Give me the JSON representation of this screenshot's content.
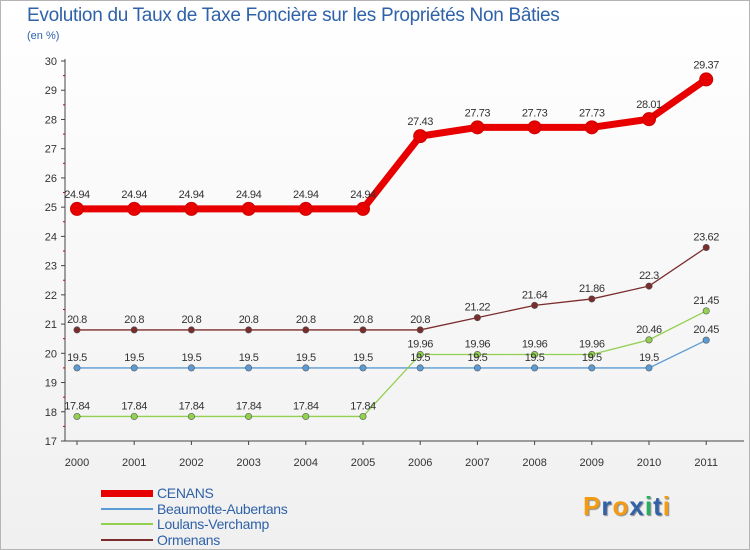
{
  "chart_data": {
    "type": "line",
    "title": "Evolution du Taux de Taxe Foncière sur les Propriétés Non Bâties",
    "subtitle": "(en %)",
    "x": [
      "2000",
      "2001",
      "2002",
      "2003",
      "2004",
      "2005",
      "2006",
      "2007",
      "2008",
      "2009",
      "2010",
      "2011"
    ],
    "ylim": [
      17,
      30
    ],
    "yticks": [
      "17",
      "18",
      "19",
      "20",
      "21",
      "22",
      "23",
      "24",
      "25",
      "26",
      "27",
      "28",
      "29",
      "30"
    ],
    "grid": false,
    "legend_position": "bottom-left",
    "series": [
      {
        "name": "CENANS",
        "color": "#e80000",
        "values": [
          24.94,
          24.94,
          24.94,
          24.94,
          24.94,
          24.94,
          27.43,
          27.73,
          27.73,
          27.73,
          28.01,
          29.37
        ],
        "labels": [
          "24.94",
          "24.94",
          "24.94",
          "24.94",
          "24.94",
          "24.94",
          "27.43",
          "27.73",
          "27.73",
          "27.73",
          "28.01",
          "29.37"
        ]
      },
      {
        "name": "Beaumotte-Aubertans",
        "color": "#5b9bd5",
        "values": [
          19.5,
          19.5,
          19.5,
          19.5,
          19.5,
          19.5,
          19.5,
          19.5,
          19.5,
          19.5,
          19.5,
          20.45
        ],
        "labels": [
          "19.5",
          "19.5",
          "19.5",
          "19.5",
          "19.5",
          "19.5",
          "19.5",
          "19.5",
          "19.5",
          "19.5",
          "19.5",
          "20.45"
        ]
      },
      {
        "name": "Loulans-Verchamp",
        "color": "#92d050",
        "values": [
          17.84,
          17.84,
          17.84,
          17.84,
          17.84,
          17.84,
          19.96,
          19.96,
          19.96,
          19.96,
          20.46,
          21.45
        ],
        "labels": [
          "17.84",
          "17.84",
          "17.84",
          "17.84",
          "17.84",
          "17.84",
          "19.96",
          "19.96",
          "19.96",
          "19.96",
          "20.46",
          "21.45"
        ]
      },
      {
        "name": "Ormenans",
        "color": "#7b2c2c",
        "values": [
          20.8,
          20.8,
          20.8,
          20.8,
          20.8,
          20.8,
          20.8,
          21.22,
          21.64,
          21.86,
          22.3,
          23.62
        ],
        "labels": [
          "20.8",
          "20.8",
          "20.8",
          "20.8",
          "20.8",
          "20.8",
          "20.8",
          "21.22",
          "21.64",
          "21.86",
          "22.3",
          "23.62"
        ]
      }
    ]
  },
  "logo": {
    "letters": [
      "P",
      "r",
      "o",
      "x",
      "i",
      "t",
      "i"
    ],
    "colors": [
      "#f39c12",
      "#2f62a8",
      "#f39c12",
      "#2f62a8",
      "#27ae60",
      "#2f62a8",
      "#f39c12"
    ]
  }
}
